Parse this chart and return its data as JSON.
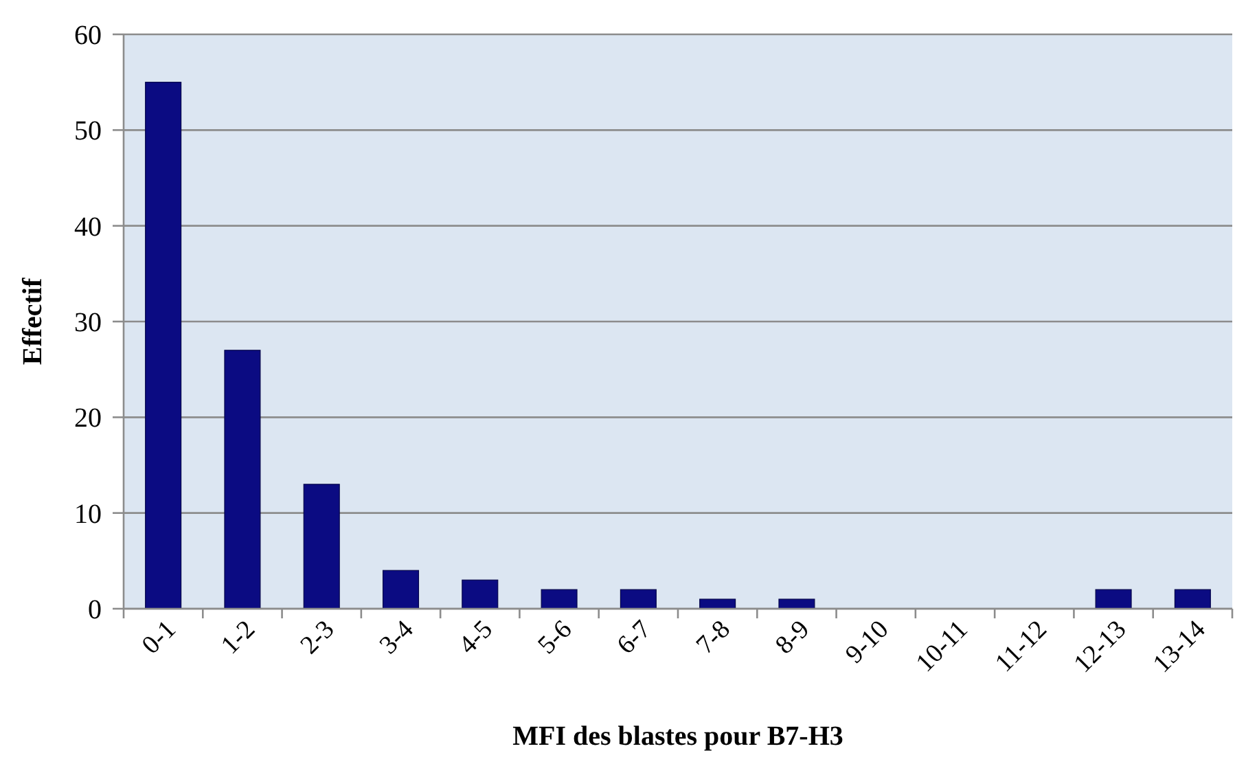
{
  "chart_data": {
    "type": "bar",
    "xlabel": "MFI des blastes pour B7-H3",
    "ylabel": "Effectif",
    "categories": [
      "0-1",
      "1-2",
      "2-3",
      "3-4",
      "4-5",
      "5-6",
      "6-7",
      "7-8",
      "8-9",
      "9-10",
      "10-11",
      "11-12",
      "12-13",
      "13-14"
    ],
    "values": [
      55,
      27,
      13,
      4,
      3,
      2,
      2,
      1,
      1,
      0,
      0,
      0,
      2,
      2
    ],
    "color": "#0b0b82",
    "ylim": [
      0,
      60
    ],
    "yticks": [
      0,
      10,
      20,
      30,
      40,
      50,
      60
    ],
    "grid": "y"
  }
}
